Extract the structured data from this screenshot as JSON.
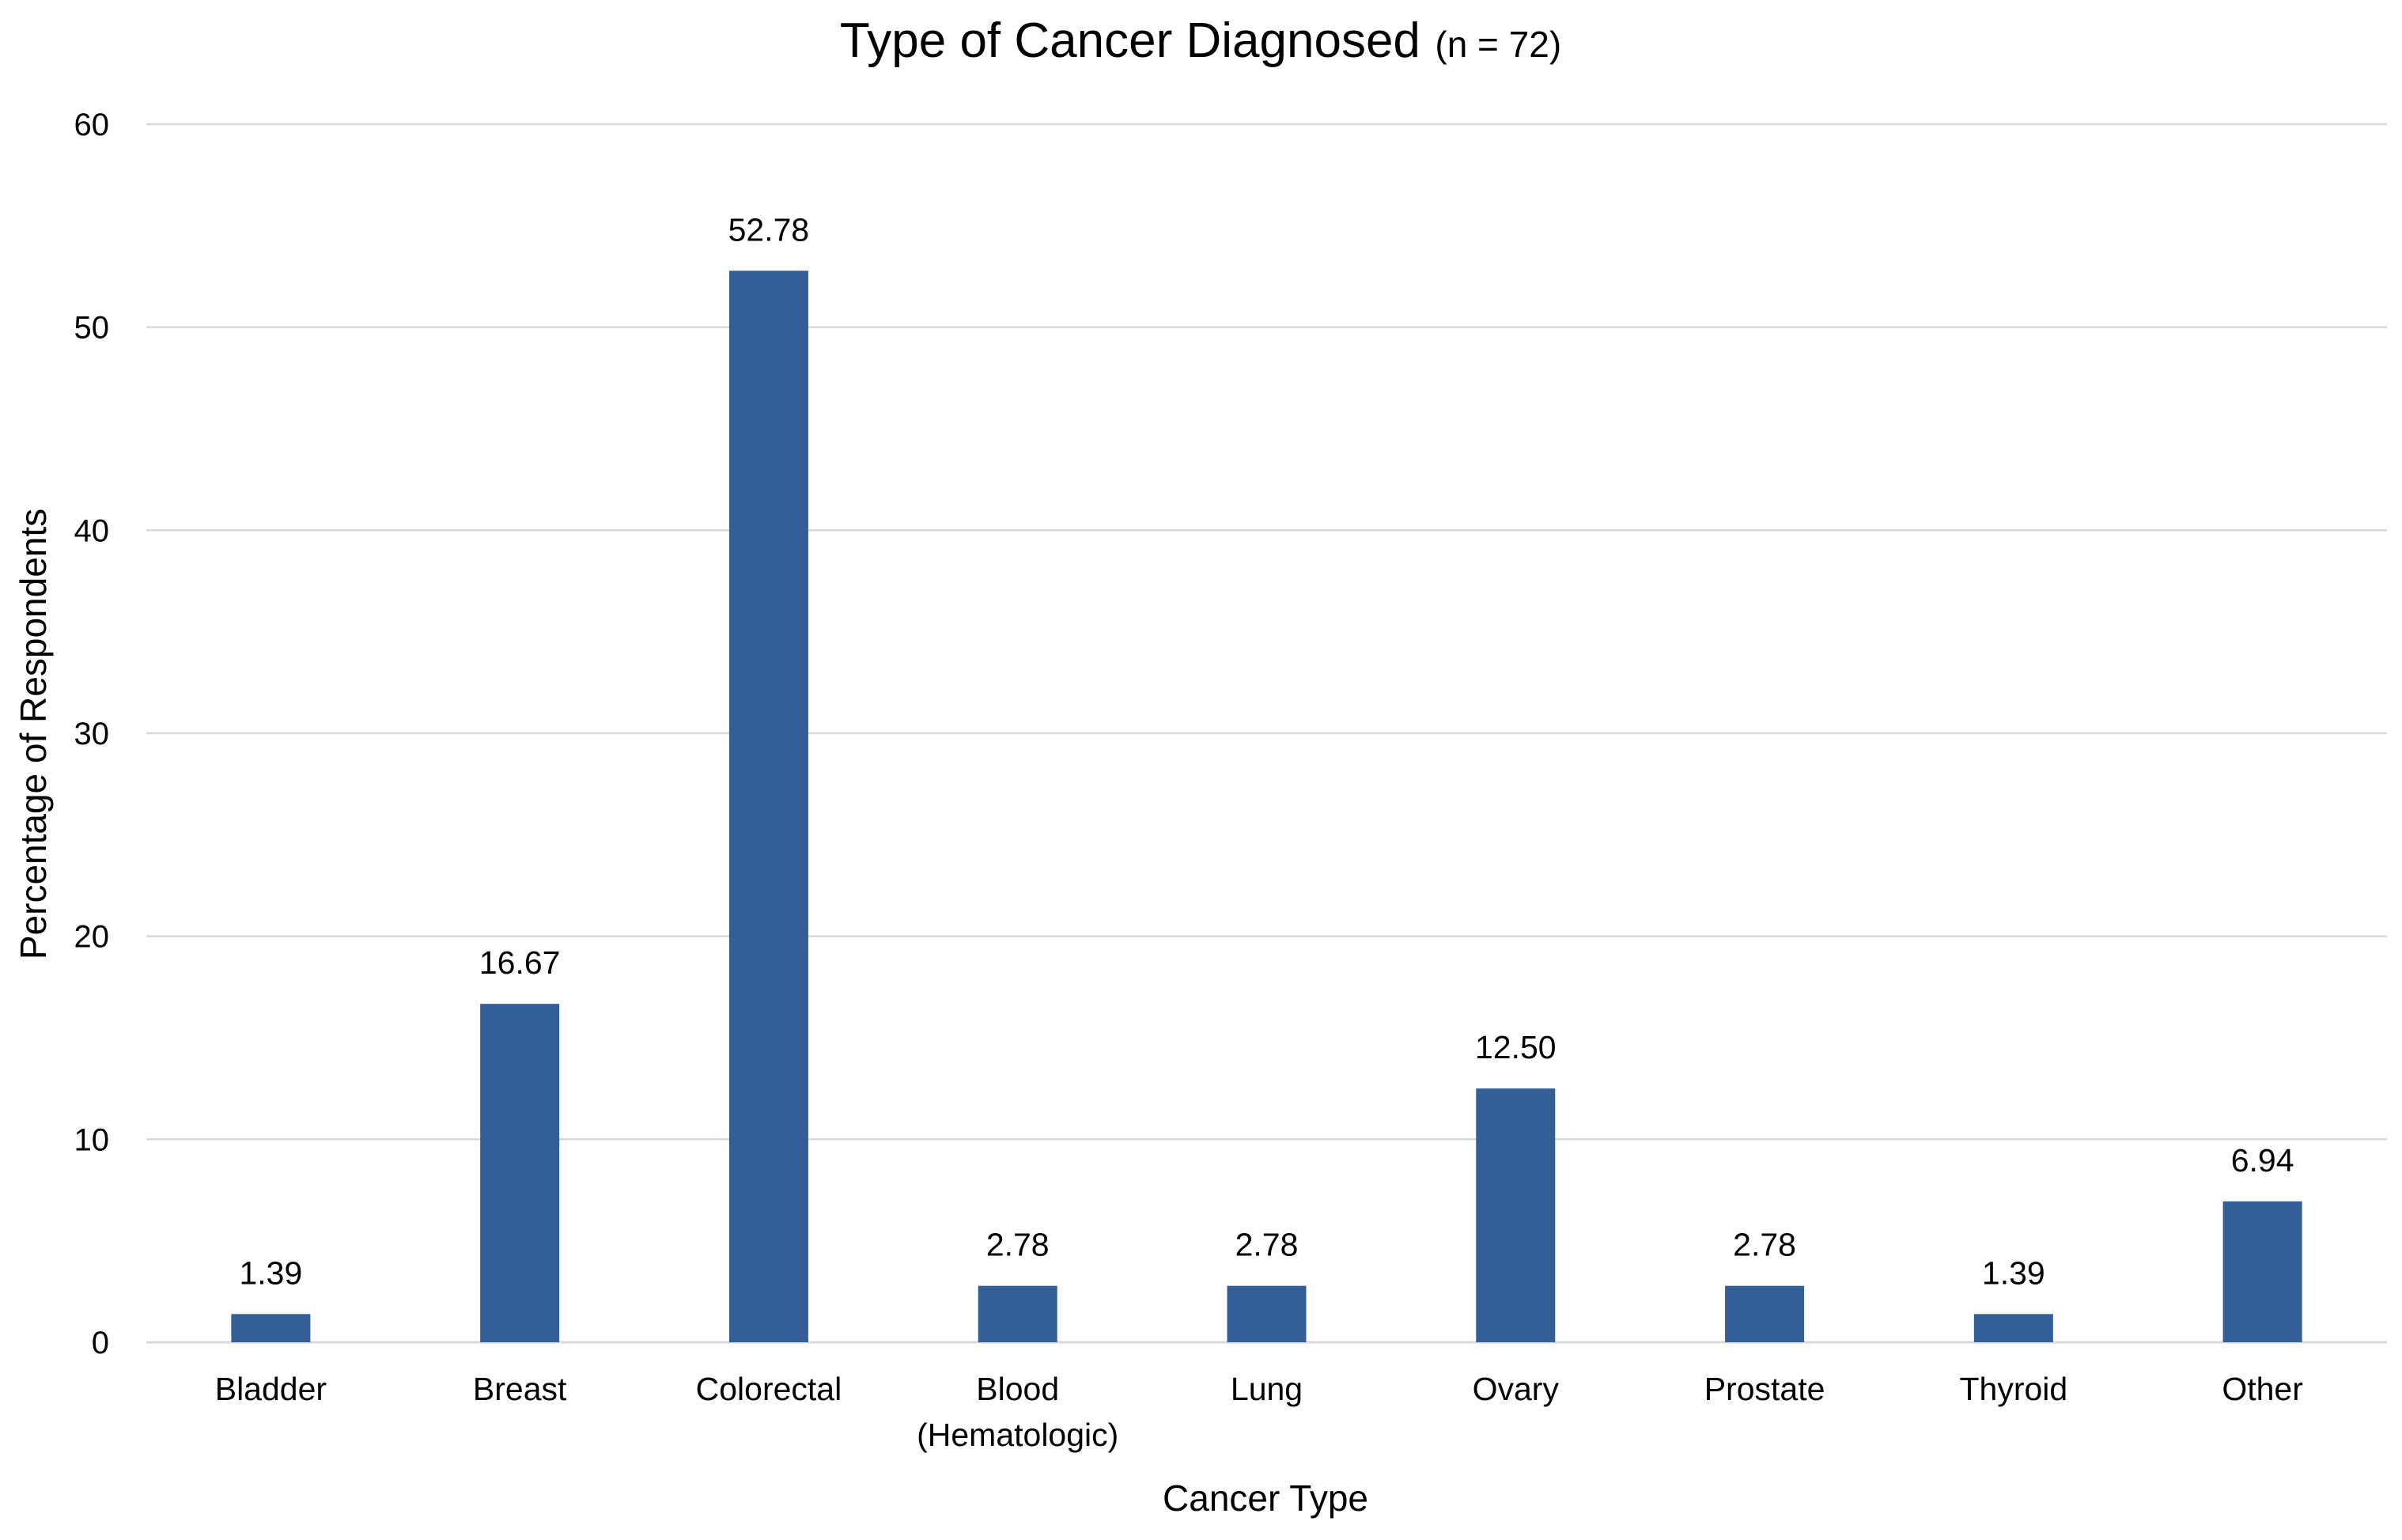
{
  "chart_data": {
    "type": "bar",
    "title": "Type of Cancer Diagnosed",
    "subtitle": "(n = 72)",
    "xlabel": "Cancer Type",
    "ylabel": "Percentage of Respondents",
    "categories": [
      [
        "Bladder"
      ],
      [
        "Breast"
      ],
      [
        "Colorectal"
      ],
      [
        "Blood",
        "(Hematologic)"
      ],
      [
        "Lung"
      ],
      [
        "Ovary"
      ],
      [
        "Prostate"
      ],
      [
        "Thyroid"
      ],
      [
        "Other"
      ]
    ],
    "values": [
      1.39,
      16.67,
      52.78,
      2.78,
      2.78,
      12.5,
      2.78,
      1.39,
      6.94
    ],
    "data_labels": [
      "1.39",
      "16.67",
      "52.78",
      "2.78",
      "2.78",
      "12.50",
      "2.78",
      "1.39",
      "6.94"
    ],
    "ylim": [
      0,
      60
    ],
    "yticks": [
      0,
      10,
      20,
      30,
      40,
      50,
      60
    ],
    "grid": true,
    "legend": "none",
    "bar_color": "#335e96"
  }
}
